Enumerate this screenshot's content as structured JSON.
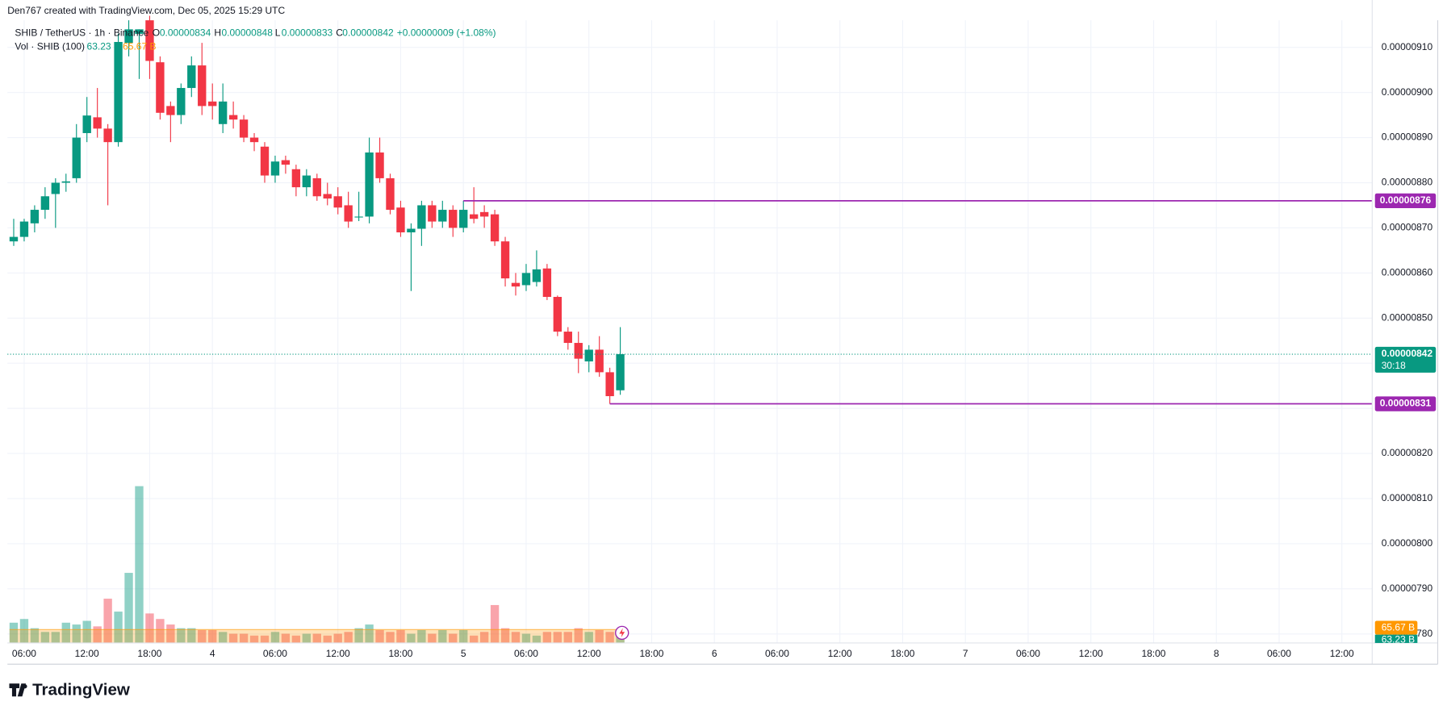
{
  "header": {
    "attribution": "Den767 created with TradingView.com, Dec 05, 2025 15:29 UTC",
    "symbol": "SHIB / TetherUS · 1h · Binance",
    "o_label": "O",
    "h_label": "H",
    "l_label": "L",
    "c_label": "C",
    "change": "+0.00000009 (+1.08%)",
    "countdown": "30:18",
    "brand": "TradingView"
  },
  "chart_data": {
    "type": "candlestick",
    "open": [
      8.67e-06,
      8.68e-06,
      8.71e-06,
      8.74e-06,
      8.775e-06,
      8.8e-06,
      8.81e-06,
      8.91e-06,
      8.945e-06,
      8.92e-06,
      8.89e-06,
      9.11e-06,
      9.13e-06,
      9.16e-06,
      9.067e-06,
      8.97e-06,
      8.95e-06,
      9.01e-06,
      9.06e-06,
      8.98e-06,
      8.93e-06,
      8.95e-06,
      8.94e-06,
      8.9e-06,
      8.88e-06,
      8.816e-06,
      8.85e-06,
      8.83e-06,
      8.79e-06,
      8.81e-06,
      8.775e-06,
      8.77e-06,
      8.75e-06,
      8.723e-06,
      8.725e-06,
      8.867e-06,
      8.81e-06,
      8.745e-06,
      8.69e-06,
      8.698e-06,
      8.75e-06,
      8.714e-06,
      8.74e-06,
      8.7e-06,
      8.73e-06,
      8.735e-06,
      8.73e-06,
      8.67e-06,
      8.578e-06,
      8.573e-06,
      8.58e-06,
      8.61e-06,
      8.547e-06,
      8.47e-06,
      8.445e-06,
      8.404e-06,
      8.43e-06,
      8.38e-06,
      8.34e-06
    ],
    "high": [
      8.72e-06,
      8.72e-06,
      8.75e-06,
      8.79e-06,
      8.81e-06,
      8.82e-06,
      8.93e-06,
      8.99e-06,
      9.01e-06,
      8.93e-06,
      9.13e-06,
      9.16e-06,
      9.14e-06,
      9.17e-06,
      9.08e-06,
      8.98e-06,
      9.02e-06,
      9.08e-06,
      9.11e-06,
      9.02e-06,
      9.02e-06,
      8.98e-06,
      8.95e-06,
      8.91e-06,
      8.89e-06,
      8.86e-06,
      8.86e-06,
      8.84e-06,
      8.83e-06,
      8.82e-06,
      8.8e-06,
      8.79e-06,
      8.78e-06,
      8.78e-06,
      8.9e-06,
      8.9e-06,
      8.82e-06,
      8.76e-06,
      8.71e-06,
      8.76e-06,
      8.76e-06,
      8.76e-06,
      8.75e-06,
      8.76e-06,
      8.79e-06,
      8.75e-06,
      8.74e-06,
      8.68e-06,
      8.6e-06,
      8.62e-06,
      8.65e-06,
      8.62e-06,
      8.55e-06,
      8.48e-06,
      8.47e-06,
      8.44e-06,
      8.46e-06,
      8.39e-06,
      8.48e-06
    ],
    "low": [
      8.66e-06,
      8.67e-06,
      8.69e-06,
      8.72e-06,
      8.7e-06,
      8.78e-06,
      8.8e-06,
      8.89e-06,
      8.9e-06,
      8.75e-06,
      8.88e-06,
      9.08e-06,
      9.03e-06,
      9.03e-06,
      8.94e-06,
      8.89e-06,
      8.93e-06,
      8.99e-06,
      8.95e-06,
      8.94e-06,
      8.91e-06,
      8.92e-06,
      8.89e-06,
      8.87e-06,
      8.8e-06,
      8.8e-06,
      8.82e-06,
      8.77e-06,
      8.77e-06,
      8.76e-06,
      8.75e-06,
      8.73e-06,
      8.7e-06,
      8.715e-06,
      8.71e-06,
      8.8e-06,
      8.73e-06,
      8.68e-06,
      8.56e-06,
      8.66e-06,
      8.7e-06,
      8.7e-06,
      8.68e-06,
      8.69e-06,
      8.71e-06,
      8.7e-06,
      8.66e-06,
      8.57e-06,
      8.55e-06,
      8.56e-06,
      8.57e-06,
      8.54e-06,
      8.46e-06,
      8.43e-06,
      8.378e-06,
      8.38e-06,
      8.37e-06,
      8.31e-06,
      8.33e-06
    ],
    "close": [
      8.68e-06,
      8.714e-06,
      8.74e-06,
      8.77e-06,
      8.8e-06,
      8.803e-06,
      8.9e-06,
      8.949e-06,
      8.92e-06,
      8.89e-06,
      9.112e-06,
      9.14e-06,
      9.14e-06,
      9.07e-06,
      8.955e-06,
      8.95e-06,
      9.01e-06,
      9.06e-06,
      8.97e-06,
      8.97e-06,
      8.98e-06,
      8.94e-06,
      8.9e-06,
      8.89e-06,
      8.816e-06,
      8.847e-06,
      8.84e-06,
      8.79e-06,
      8.816e-06,
      8.77e-06,
      8.765e-06,
      8.745e-06,
      8.714e-06,
      8.725e-06,
      8.867e-06,
      8.81e-06,
      8.74e-06,
      8.69e-06,
      8.698e-06,
      8.75e-06,
      8.714e-06,
      8.74e-06,
      8.7e-06,
      8.74e-06,
      8.72e-06,
      8.725e-06,
      8.67e-06,
      8.588e-06,
      8.57e-06,
      8.6e-06,
      8.608e-06,
      8.547e-06,
      8.47e-06,
      8.445e-06,
      8.41e-06,
      8.43e-06,
      8.38e-06,
      8.327e-06,
      8.42e-06
    ],
    "up_color": "#089981",
    "down_color": "#f23645",
    "volume": {
      "title": "Vol · SHIB (100)",
      "values": [
        99,
        117,
        72,
        54,
        54,
        99,
        90,
        108,
        81,
        216,
        153,
        342,
        765,
        144,
        117,
        90,
        72,
        72,
        63,
        63,
        54,
        45,
        45,
        36,
        36,
        54,
        45,
        36,
        45,
        45,
        36,
        45,
        54,
        72,
        90,
        63,
        54,
        63,
        45,
        63,
        45,
        63,
        45,
        63,
        36,
        54,
        185,
        72,
        54,
        45,
        36,
        54,
        54,
        54,
        72,
        54,
        63,
        54,
        63.23
      ],
      "last_label": "63.23 B",
      "ma": 65.67,
      "ma_label": "65.67 B",
      "ma_color": "#ff9800"
    },
    "price_lines": [
      {
        "value": 8.76e-06,
        "start": 43,
        "color": "#9c27b0"
      },
      {
        "value": 8.31e-06,
        "start": 57,
        "color": "#9c27b0"
      }
    ],
    "xlim": [
      -0.6,
      129.9
    ],
    "xticks": [
      {
        "value": 1,
        "label": "06:00"
      },
      {
        "value": 7,
        "label": "12:00"
      },
      {
        "value": 13,
        "label": "18:00"
      },
      {
        "value": 19,
        "label": "4"
      },
      {
        "value": 25,
        "label": "06:00"
      },
      {
        "value": 31,
        "label": "12:00"
      },
      {
        "value": 37,
        "label": "18:00"
      },
      {
        "value": 43,
        "label": "5"
      },
      {
        "value": 49,
        "label": "06:00"
      },
      {
        "value": 55,
        "label": "12:00"
      },
      {
        "value": 61,
        "label": "18:00"
      },
      {
        "value": 67,
        "label": "6"
      },
      {
        "value": 73,
        "label": "06:00"
      },
      {
        "value": 79,
        "label": "12:00"
      },
      {
        "value": 85,
        "label": "18:00"
      },
      {
        "value": 91,
        "label": "7"
      },
      {
        "value": 97,
        "label": "06:00"
      },
      {
        "value": 103,
        "label": "12:00"
      },
      {
        "value": 109,
        "label": "18:00"
      },
      {
        "value": 115,
        "label": "8"
      },
      {
        "value": 121,
        "label": "06:00"
      },
      {
        "value": 127,
        "label": "12:00"
      }
    ],
    "ylim": [
      7.78e-06,
      9.16e-06
    ],
    "yticks": [
      {
        "value": 7.8e-06,
        "label": "0.00000780"
      },
      {
        "value": 7.9e-06,
        "label": "0.00000790"
      },
      {
        "value": 8e-06,
        "label": "0.00000800"
      },
      {
        "value": 8.1e-06,
        "label": "0.00000810"
      },
      {
        "value": 8.2e-06,
        "label": "0.00000820"
      },
      {
        "value": 8.3e-06,
        "label": "0.00000830"
      },
      {
        "value": 8.4e-06,
        "label": "0.00000840"
      },
      {
        "value": 8.5e-06,
        "label": "0.00000850"
      },
      {
        "value": 8.6e-06,
        "label": "0.00000860"
      },
      {
        "value": 8.7e-06,
        "label": "0.00000870"
      },
      {
        "value": 8.8e-06,
        "label": "0.00000880"
      },
      {
        "value": 8.9e-06,
        "label": "0.00000890"
      },
      {
        "value": 9e-06,
        "label": "0.00000900"
      },
      {
        "value": 9.1e-06,
        "label": "0.00000910"
      }
    ],
    "grid": true
  }
}
